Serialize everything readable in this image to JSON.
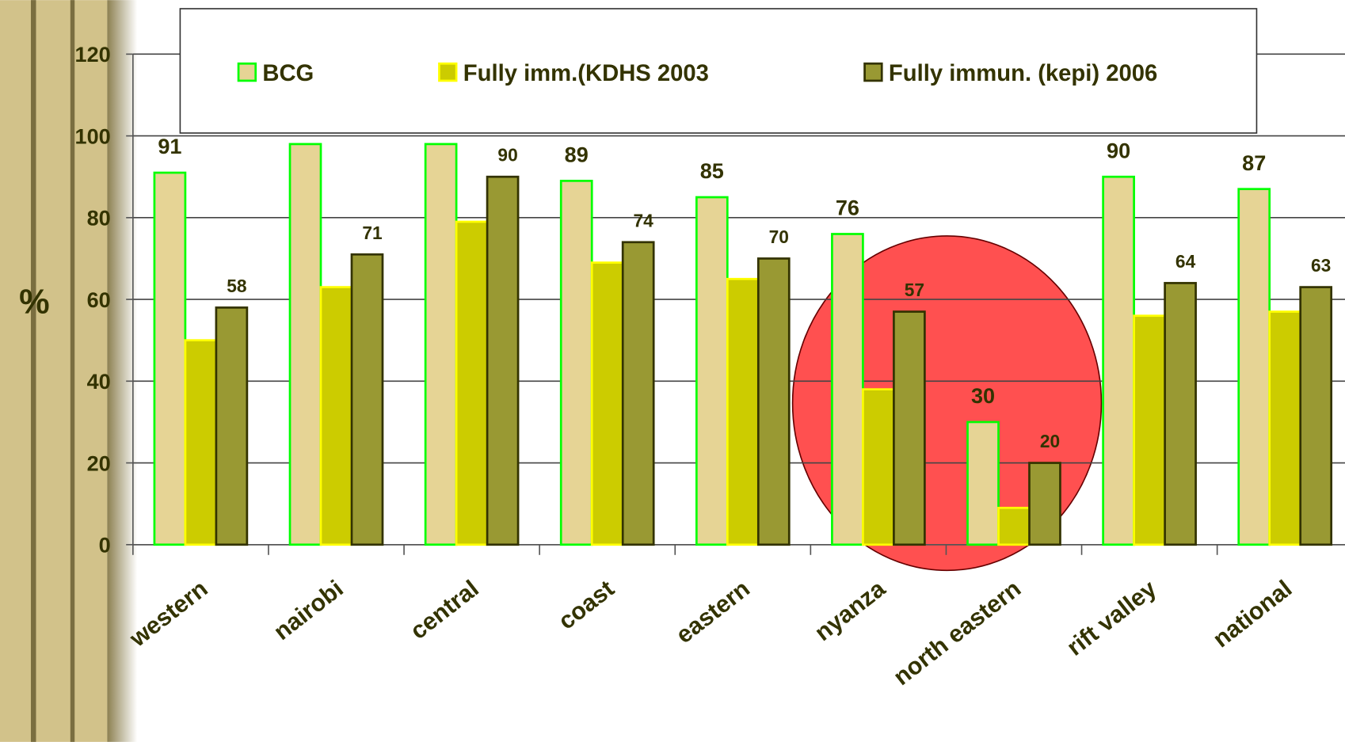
{
  "chart_data": {
    "type": "bar",
    "y_label": "%",
    "categories": [
      "western",
      "nairobi",
      "central",
      "coast",
      "eastern",
      "nyanza",
      "north eastern",
      "rift valley",
      "national"
    ],
    "series": [
      {
        "name": "BCG",
        "color": "#e6d495",
        "border": "#00ff00",
        "values": [
          91,
          98,
          98,
          89,
          85,
          76,
          30,
          90,
          87
        ],
        "show_labels": true
      },
      {
        "name": "Fully imm.(KDHS 2003",
        "color": "#cccc00",
        "border": "#ffff00",
        "values": [
          50,
          63,
          79,
          69,
          65,
          38,
          9,
          56,
          57
        ],
        "show_labels": false
      },
      {
        "name": "Fully immun. (kepi) 2006",
        "color": "#999933",
        "border": "#333300",
        "values": [
          58,
          71,
          90,
          74,
          70,
          57,
          20,
          64,
          63
        ],
        "show_labels": true
      }
    ],
    "ylim": [
      0,
      120
    ],
    "yticks": [
      0,
      20,
      40,
      60,
      80,
      100,
      120
    ],
    "grid": true
  }
}
